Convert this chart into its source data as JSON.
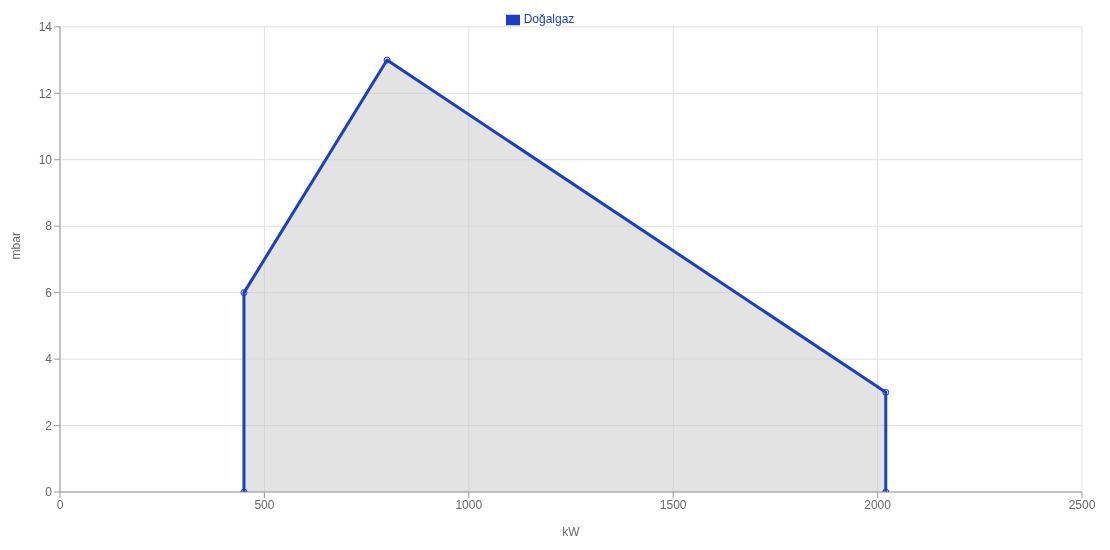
{
  "chart_data": {
    "type": "area",
    "xlabel": "kW",
    "ylabel": "mbar",
    "series": [
      {
        "name": "Doğalgaz",
        "color": "#1a3fc4",
        "x": [
          450,
          450,
          800,
          2020,
          2020
        ],
        "values": [
          0,
          6,
          13,
          3,
          0
        ]
      }
    ],
    "xlim": [
      0,
      2500
    ],
    "xticks": [
      0,
      500,
      1000,
      1500,
      2000,
      2500
    ],
    "ylim": [
      0,
      14
    ],
    "yticks": [
      0,
      2,
      4,
      6,
      8,
      10,
      12,
      14
    ],
    "grid": true,
    "legend": "top",
    "marker": "circle"
  }
}
